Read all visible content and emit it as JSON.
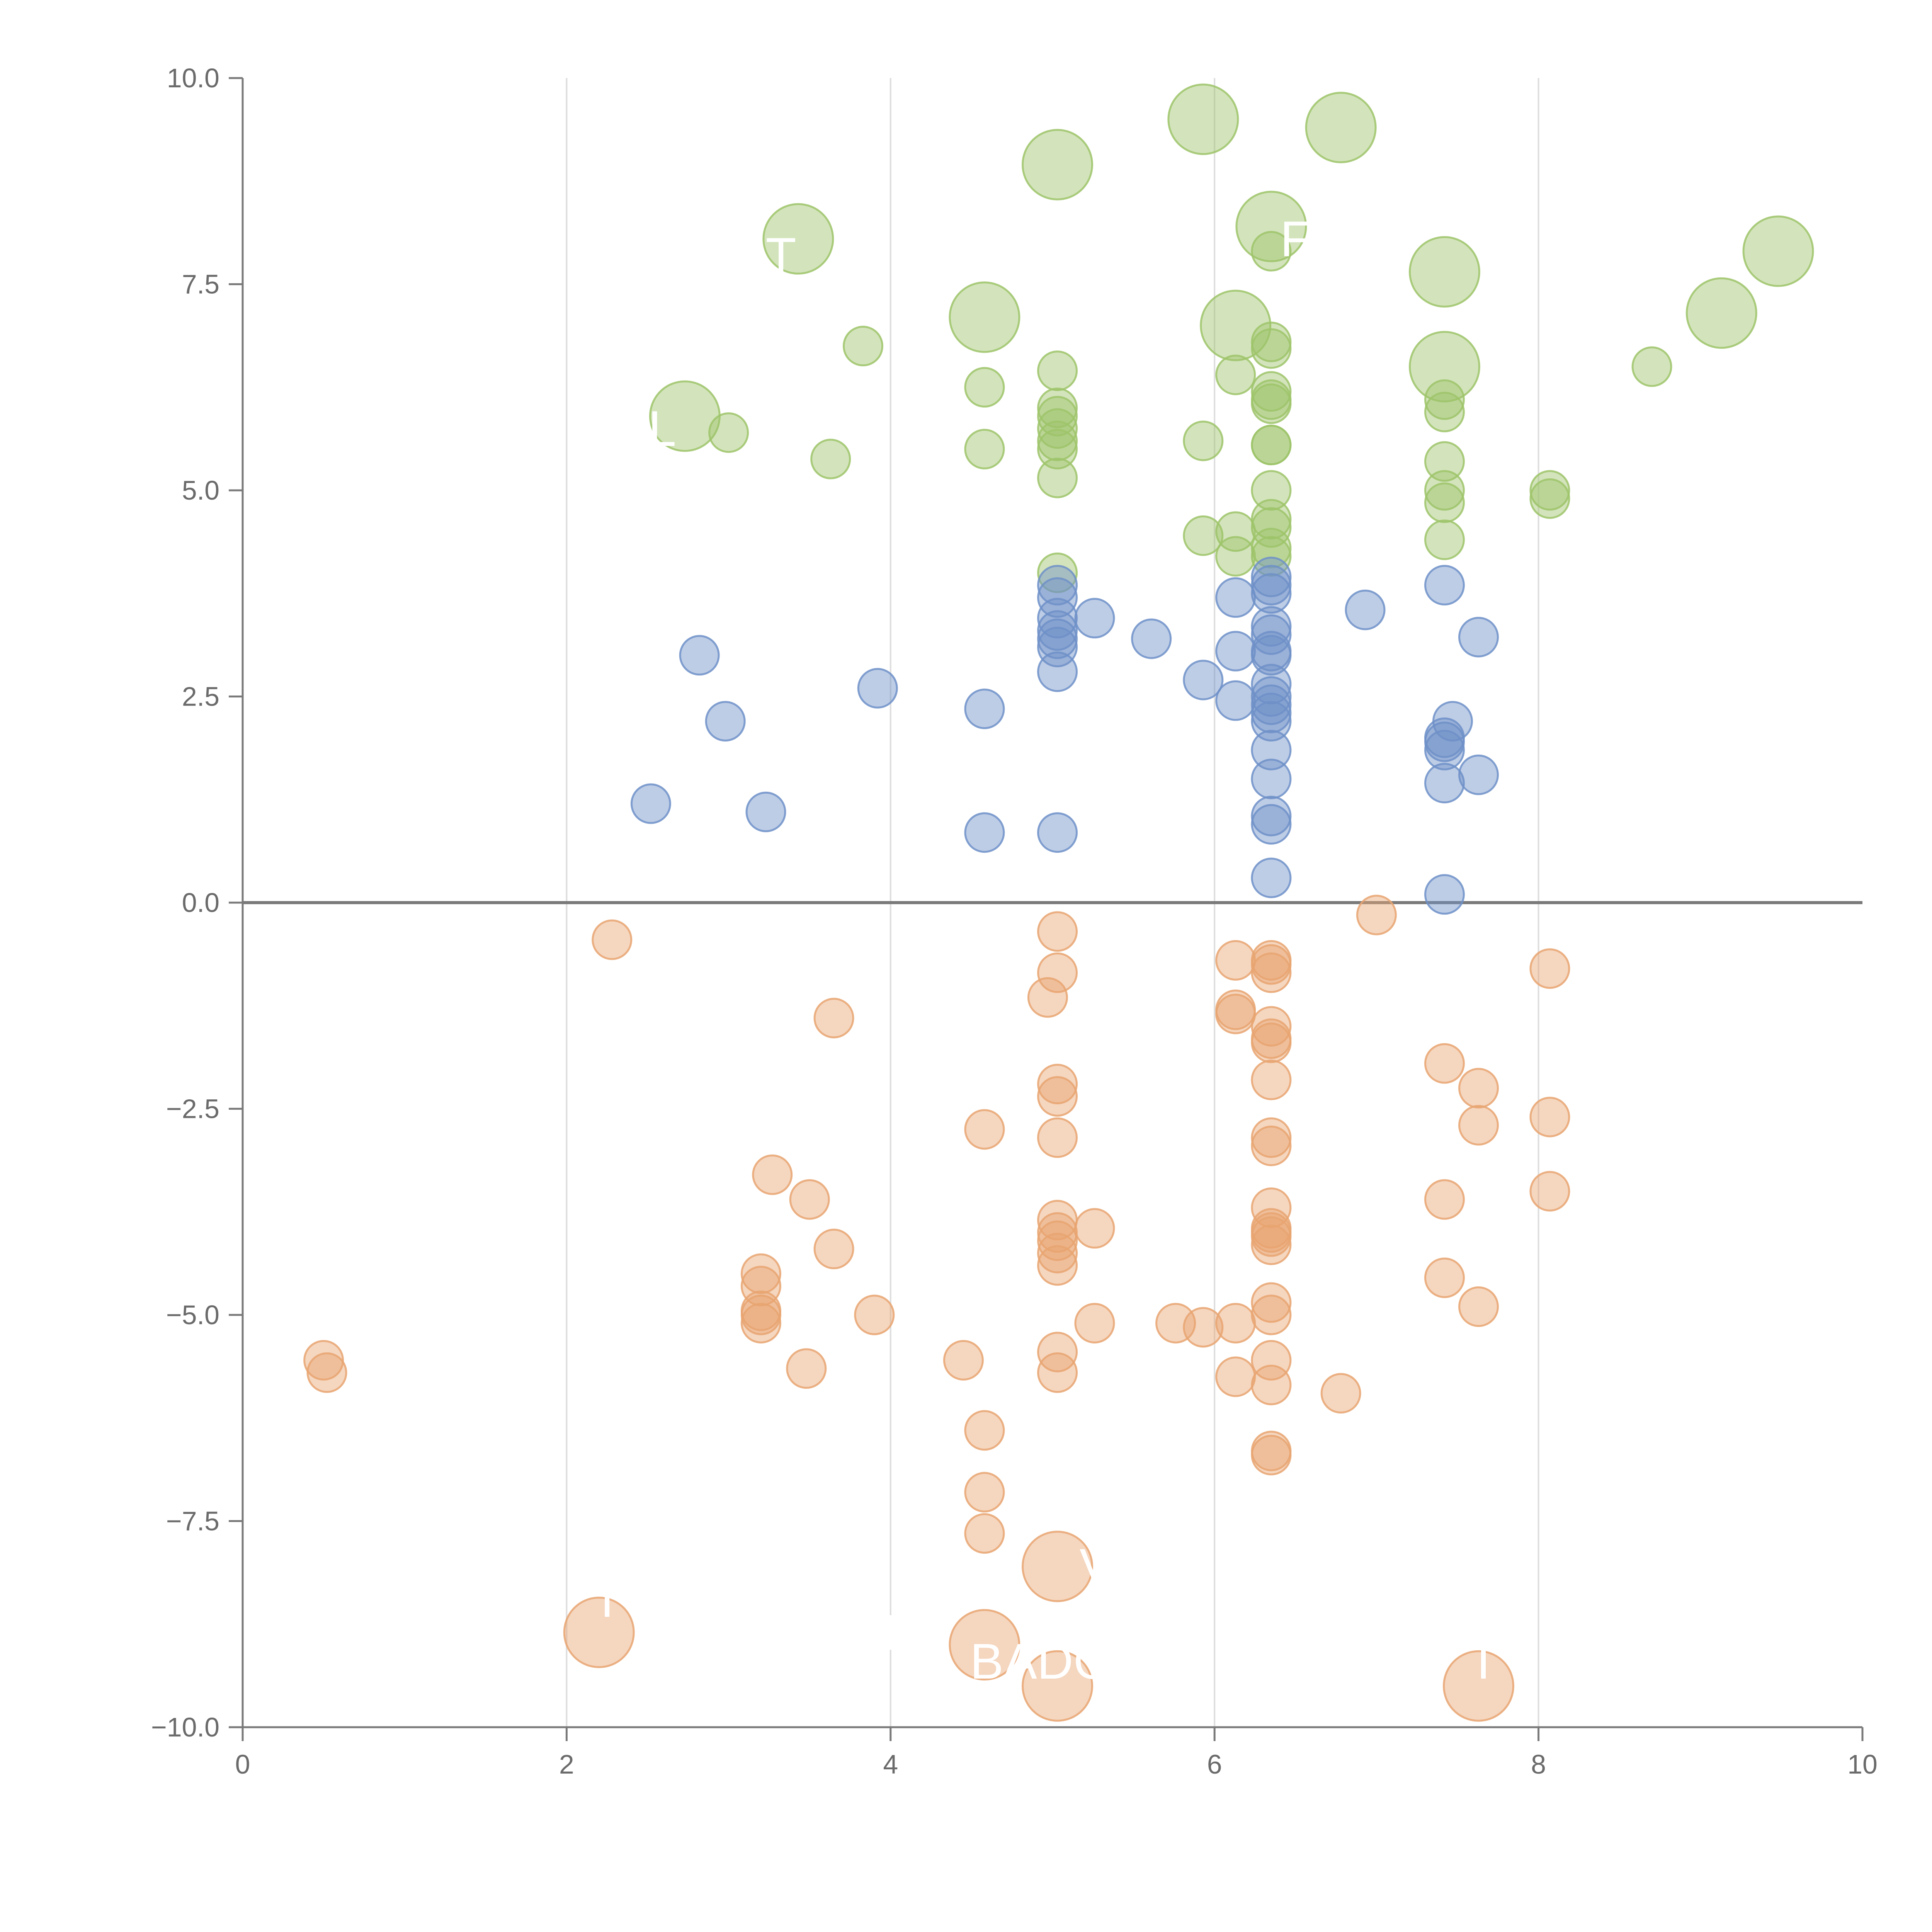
{
  "chart_data": {
    "type": "scatter",
    "title": "",
    "xlabel": "",
    "ylabel": "",
    "xlim": [
      0,
      10
    ],
    "ylim": [
      -10,
      10
    ],
    "grid": "vertical",
    "legend": "none",
    "x_ticks": [
      {
        "value": 0,
        "label": "0"
      },
      {
        "value": 2,
        "label": "2"
      },
      {
        "value": 4,
        "label": "4"
      },
      {
        "value": 6,
        "label": "6"
      },
      {
        "value": 8,
        "label": "8"
      },
      {
        "value": 10,
        "label": "10"
      }
    ],
    "y_ticks": [
      {
        "value": 10,
        "label": "10.0"
      },
      {
        "value": 7.5,
        "label": "7.5"
      },
      {
        "value": 5,
        "label": "5.0"
      },
      {
        "value": 2.5,
        "label": "2.5"
      },
      {
        "value": 0,
        "label": "0.0"
      },
      {
        "value": -2.5,
        "label": "−2.5"
      },
      {
        "value": -5,
        "label": "−5.0"
      },
      {
        "value": -7.5,
        "label": "−7.5"
      },
      {
        "value": -10,
        "label": "−10.0"
      }
    ],
    "series": [
      {
        "name": "green",
        "color": "#9dc46a",
        "points": [
          [
            5.93,
            9.5,
            2
          ],
          [
            6.78,
            9.4,
            2
          ],
          [
            5.03,
            8.95,
            2
          ],
          [
            6.35,
            8.2,
            2
          ],
          [
            3.43,
            8.05,
            2
          ],
          [
            9.48,
            7.9,
            2
          ],
          [
            7.42,
            7.65,
            2
          ],
          [
            9.13,
            7.15,
            2
          ],
          [
            4.58,
            7.1,
            2
          ],
          [
            6.13,
            7.0,
            2
          ],
          [
            7.42,
            6.5,
            2
          ],
          [
            2.73,
            5.9,
            2
          ],
          [
            6.35,
            7.9,
            1
          ],
          [
            3.83,
            6.75,
            1
          ],
          [
            6.35,
            6.8,
            1
          ],
          [
            6.35,
            6.72,
            1
          ],
          [
            5.03,
            6.45,
            1
          ],
          [
            8.7,
            6.5,
            1
          ],
          [
            6.13,
            6.4,
            1
          ],
          [
            4.58,
            6.25,
            1
          ],
          [
            6.35,
            6.2,
            1
          ],
          [
            6.35,
            6.1,
            1
          ],
          [
            6.35,
            6.05,
            1
          ],
          [
            7.42,
            6.1,
            1
          ],
          [
            7.42,
            5.95,
            1
          ],
          [
            5.03,
            6.0,
            1
          ],
          [
            5.03,
            5.9,
            1
          ],
          [
            3.0,
            5.7,
            1
          ],
          [
            5.93,
            5.6,
            1
          ],
          [
            5.03,
            5.75,
            1
          ],
          [
            5.03,
            5.6,
            1
          ],
          [
            5.03,
            5.5,
            1
          ],
          [
            6.35,
            5.55,
            1
          ],
          [
            6.35,
            5.55,
            1
          ],
          [
            4.58,
            5.5,
            1
          ],
          [
            3.63,
            5.38,
            1
          ],
          [
            7.42,
            5.35,
            1
          ],
          [
            5.03,
            5.15,
            1
          ],
          [
            7.42,
            5.0,
            1
          ],
          [
            6.35,
            5.0,
            1
          ],
          [
            8.07,
            5.0,
            1
          ],
          [
            8.07,
            4.9,
            1
          ],
          [
            7.42,
            4.85,
            1
          ],
          [
            6.35,
            4.65,
            1
          ],
          [
            6.35,
            4.55,
            1
          ],
          [
            6.13,
            4.5,
            1
          ],
          [
            5.93,
            4.45,
            1
          ],
          [
            7.42,
            4.4,
            1
          ],
          [
            6.35,
            4.3,
            1
          ],
          [
            6.35,
            4.2,
            1
          ],
          [
            6.13,
            4.2,
            1
          ],
          [
            5.03,
            4.0,
            1
          ]
        ]
      },
      {
        "name": "blue",
        "color": "#6e91c8",
        "points": [
          [
            6.35,
            3.95,
            1
          ],
          [
            6.35,
            3.85,
            1
          ],
          [
            5.03,
            3.85,
            1
          ],
          [
            6.35,
            3.75,
            1
          ],
          [
            5.03,
            3.7,
            1
          ],
          [
            6.13,
            3.7,
            1
          ],
          [
            7.42,
            3.85,
            1
          ],
          [
            6.93,
            3.55,
            1
          ],
          [
            5.26,
            3.45,
            1
          ],
          [
            5.03,
            3.45,
            1
          ],
          [
            6.35,
            3.35,
            1
          ],
          [
            5.03,
            3.3,
            1
          ],
          [
            6.35,
            3.25,
            1
          ],
          [
            5.03,
            3.2,
            1
          ],
          [
            5.61,
            3.2,
            1
          ],
          [
            7.63,
            3.22,
            1
          ],
          [
            5.03,
            3.1,
            1
          ],
          [
            6.13,
            3.05,
            1
          ],
          [
            6.35,
            3.05,
            1
          ],
          [
            6.35,
            3.0,
            1
          ],
          [
            2.82,
            3.0,
            1
          ],
          [
            5.03,
            2.8,
            1
          ],
          [
            5.93,
            2.7,
            1
          ],
          [
            6.35,
            2.65,
            1
          ],
          [
            3.92,
            2.6,
            1
          ],
          [
            6.35,
            2.5,
            1
          ],
          [
            6.13,
            2.45,
            1
          ],
          [
            6.35,
            2.4,
            1
          ],
          [
            4.58,
            2.35,
            1
          ],
          [
            6.35,
            2.3,
            1
          ],
          [
            6.35,
            2.2,
            1
          ],
          [
            7.47,
            2.2,
            1
          ],
          [
            2.98,
            2.2,
            1
          ],
          [
            7.42,
            2.0,
            1
          ],
          [
            7.42,
            1.95,
            1
          ],
          [
            7.42,
            1.85,
            1
          ],
          [
            6.35,
            1.85,
            1
          ],
          [
            7.63,
            1.55,
            1
          ],
          [
            6.35,
            1.5,
            1
          ],
          [
            7.42,
            1.45,
            1
          ],
          [
            2.52,
            1.2,
            1
          ],
          [
            3.23,
            1.1,
            1
          ],
          [
            6.35,
            1.05,
            1
          ],
          [
            6.35,
            0.95,
            1
          ],
          [
            4.58,
            0.85,
            1
          ],
          [
            5.03,
            0.85,
            1
          ],
          [
            6.35,
            0.3,
            1
          ],
          [
            7.42,
            0.1,
            1
          ]
        ]
      },
      {
        "name": "orange",
        "color": "#e8a571",
        "points": [
          [
            5.03,
            -0.35,
            1
          ],
          [
            7.0,
            -0.15,
            1
          ],
          [
            2.28,
            -0.45,
            1
          ],
          [
            6.13,
            -0.7,
            1
          ],
          [
            6.35,
            -0.7,
            1
          ],
          [
            6.35,
            -0.75,
            1
          ],
          [
            6.35,
            -0.85,
            1
          ],
          [
            5.03,
            -0.85,
            1
          ],
          [
            8.07,
            -0.8,
            1
          ],
          [
            4.97,
            -1.15,
            1
          ],
          [
            6.13,
            -1.3,
            1
          ],
          [
            6.13,
            -1.35,
            1
          ],
          [
            3.65,
            -1.4,
            1
          ],
          [
            6.35,
            -1.5,
            1
          ],
          [
            6.35,
            -1.65,
            1
          ],
          [
            6.35,
            -1.7,
            1
          ],
          [
            7.42,
            -1.95,
            1
          ],
          [
            6.35,
            -2.15,
            1
          ],
          [
            5.03,
            -2.2,
            1
          ],
          [
            7.63,
            -2.25,
            1
          ],
          [
            5.03,
            -2.35,
            1
          ],
          [
            8.07,
            -2.6,
            1
          ],
          [
            4.58,
            -2.75,
            1
          ],
          [
            7.63,
            -2.7,
            1
          ],
          [
            6.35,
            -2.85,
            1
          ],
          [
            5.03,
            -2.85,
            1
          ],
          [
            6.35,
            -2.95,
            1
          ],
          [
            3.27,
            -3.3,
            1
          ],
          [
            8.07,
            -3.5,
            1
          ],
          [
            3.5,
            -3.6,
            1
          ],
          [
            7.42,
            -3.6,
            1
          ],
          [
            6.35,
            -3.7,
            1
          ],
          [
            5.03,
            -3.85,
            1
          ],
          [
            6.35,
            -3.95,
            1
          ],
          [
            6.35,
            -4.0,
            1
          ],
          [
            5.26,
            -3.95,
            1
          ],
          [
            5.03,
            -4.0,
            1
          ],
          [
            6.35,
            -4.05,
            1
          ],
          [
            5.03,
            -4.1,
            1
          ],
          [
            6.35,
            -4.15,
            1
          ],
          [
            3.65,
            -4.2,
            1
          ],
          [
            5.03,
            -4.25,
            1
          ],
          [
            5.03,
            -4.4,
            1
          ],
          [
            3.2,
            -4.5,
            1
          ],
          [
            3.2,
            -4.65,
            1
          ],
          [
            7.42,
            -4.55,
            1
          ],
          [
            6.35,
            -4.85,
            1
          ],
          [
            7.63,
            -4.9,
            1
          ],
          [
            3.2,
            -4.95,
            1
          ],
          [
            3.2,
            -5.0,
            1
          ],
          [
            3.9,
            -5.0,
            1
          ],
          [
            6.35,
            -5.0,
            1
          ],
          [
            3.2,
            -5.1,
            1
          ],
          [
            5.26,
            -5.1,
            1
          ],
          [
            5.76,
            -5.1,
            1
          ],
          [
            6.13,
            -5.1,
            1
          ],
          [
            5.93,
            -5.15,
            1
          ],
          [
            5.03,
            -5.45,
            1
          ],
          [
            4.45,
            -5.55,
            1
          ],
          [
            6.35,
            -5.55,
            1
          ],
          [
            0.5,
            -5.55,
            1
          ],
          [
            0.52,
            -5.7,
            1
          ],
          [
            3.48,
            -5.65,
            1
          ],
          [
            5.03,
            -5.7,
            1
          ],
          [
            6.13,
            -5.75,
            1
          ],
          [
            6.35,
            -5.85,
            1
          ],
          [
            6.78,
            -5.95,
            1
          ],
          [
            4.58,
            -6.4,
            1
          ],
          [
            6.35,
            -6.65,
            1
          ],
          [
            6.35,
            -6.7,
            1
          ],
          [
            4.58,
            -7.15,
            1
          ],
          [
            4.58,
            -7.65,
            1
          ],
          [
            5.03,
            -8.05,
            2
          ],
          [
            2.2,
            -8.85,
            2
          ],
          [
            4.58,
            -9.0,
            2
          ],
          [
            5.03,
            -9.5,
            2
          ],
          [
            7.63,
            -9.5,
            2
          ]
        ]
      }
    ],
    "annotations": [
      {
        "text": "ST",
        "x": 3.22,
        "y": 7.85
      },
      {
        "text": "L",
        "x": 2.59,
        "y": 5.75
      },
      {
        "text": "F",
        "x": 6.5,
        "y": 8.05
      },
      {
        "text": "V",
        "x": 5.27,
        "y": -8.05
      },
      {
        "text": "BADG",
        "x": 4.93,
        "y": -9.2
      },
      {
        "text": "I",
        "x": 2.25,
        "y": -8.45
      },
      {
        "text": "N",
        "x": 4.08,
        "y": -8.85
      },
      {
        "text": "I",
        "x": 7.66,
        "y": -9.2
      }
    ]
  }
}
